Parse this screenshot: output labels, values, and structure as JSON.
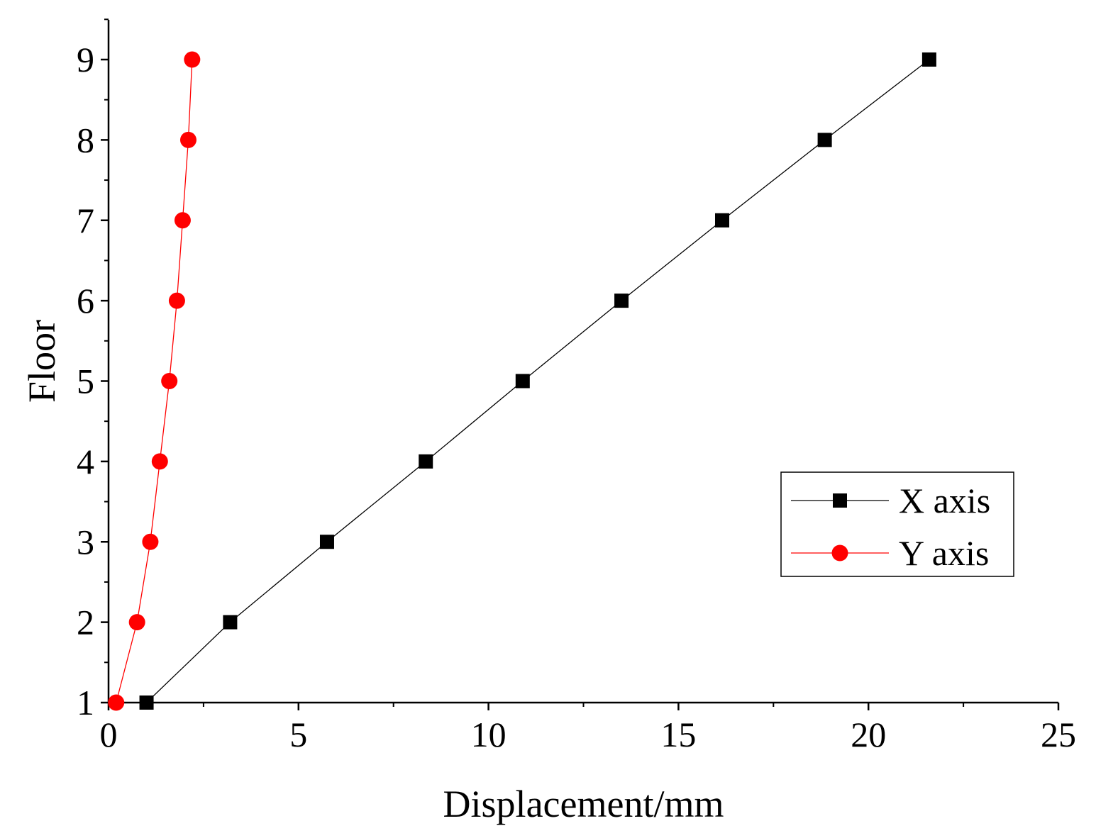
{
  "chart_data": {
    "type": "line",
    "title": "",
    "xlabel": "Displacement/mm",
    "ylabel": "Floor",
    "xlim": [
      0,
      25
    ],
    "ylim": [
      1,
      9.5
    ],
    "xticks": [
      "0",
      "5",
      "10",
      "15",
      "20",
      "25"
    ],
    "yticks": [
      "1",
      "2",
      "3",
      "4",
      "5",
      "6",
      "7",
      "8",
      "9"
    ],
    "grid": false,
    "legend_position": "bottom-right",
    "series": [
      {
        "name": "X axis",
        "color": "#000000",
        "marker": "square",
        "x": [
          1.0,
          3.2,
          5.75,
          8.35,
          10.9,
          13.5,
          16.15,
          18.85,
          21.6
        ],
        "y": [
          1,
          2,
          3,
          4,
          5,
          6,
          7,
          8,
          9
        ]
      },
      {
        "name": "Y axis",
        "color": "#ff0000",
        "marker": "circle",
        "x": [
          0.2,
          0.75,
          1.1,
          1.35,
          1.6,
          1.8,
          1.95,
          2.1,
          2.2
        ],
        "y": [
          1,
          2,
          3,
          4,
          5,
          6,
          7,
          8,
          9
        ]
      }
    ]
  }
}
